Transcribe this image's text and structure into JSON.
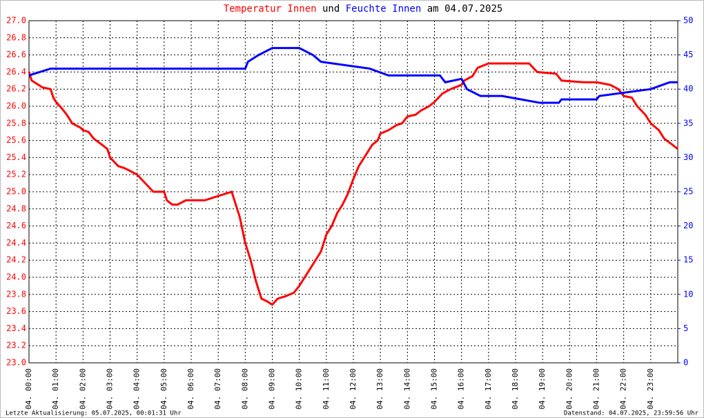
{
  "chart_data": {
    "type": "line",
    "title_connector": "und",
    "title_date": "am 04.07.2025",
    "footer_left": "Letzte Aktualisierung: 05.07.2025, 00:01:31 Uhr",
    "footer_right": "Datenstand: 04.07.2025, 23:59:56 Uhr",
    "grid": true,
    "xlim": [
      0,
      24
    ],
    "xticks": [
      {
        "value": 0,
        "label": "04. 00:00"
      },
      {
        "value": 1,
        "label": "04. 01:00"
      },
      {
        "value": 2,
        "label": "04. 02:00"
      },
      {
        "value": 3,
        "label": "04. 03:00"
      },
      {
        "value": 4,
        "label": "04. 04:00"
      },
      {
        "value": 5,
        "label": "04. 05:00"
      },
      {
        "value": 6,
        "label": "04. 06:00"
      },
      {
        "value": 7,
        "label": "04. 07:00"
      },
      {
        "value": 8,
        "label": "04. 08:00"
      },
      {
        "value": 9,
        "label": "04. 09:00"
      },
      {
        "value": 10,
        "label": "04. 10:00"
      },
      {
        "value": 11,
        "label": "04. 11:00"
      },
      {
        "value": 12,
        "label": "04. 12:00"
      },
      {
        "value": 13,
        "label": "04. 13:00"
      },
      {
        "value": 14,
        "label": "04. 14:00"
      },
      {
        "value": 15,
        "label": "04. 15:00"
      },
      {
        "value": 16,
        "label": "04. 16:00"
      },
      {
        "value": 17,
        "label": "04. 17:00"
      },
      {
        "value": 18,
        "label": "04. 18:00"
      },
      {
        "value": 19,
        "label": "04. 19:00"
      },
      {
        "value": 20,
        "label": "04. 20:00"
      },
      {
        "value": 21,
        "label": "04. 21:00"
      },
      {
        "value": 22,
        "label": "04. 22:00"
      },
      {
        "value": 23,
        "label": "04. 23:00"
      }
    ],
    "ylim": [
      23.0,
      27.0
    ],
    "yticks": [
      {
        "value": 23.0,
        "label": "23.0"
      },
      {
        "value": 23.2,
        "label": "23.2"
      },
      {
        "value": 23.4,
        "label": "23.4"
      },
      {
        "value": 23.6,
        "label": "23.6"
      },
      {
        "value": 23.8,
        "label": "23.8"
      },
      {
        "value": 24.0,
        "label": "24.0"
      },
      {
        "value": 24.2,
        "label": "24.2"
      },
      {
        "value": 24.4,
        "label": "24.4"
      },
      {
        "value": 24.6,
        "label": "24.6"
      },
      {
        "value": 24.8,
        "label": "24.8"
      },
      {
        "value": 25.0,
        "label": "25.0"
      },
      {
        "value": 25.2,
        "label": "25.2"
      },
      {
        "value": 25.4,
        "label": "25.4"
      },
      {
        "value": 25.6,
        "label": "25.6"
      },
      {
        "value": 25.8,
        "label": "25.8"
      },
      {
        "value": 26.0,
        "label": "26.0"
      },
      {
        "value": 26.2,
        "label": "26.2"
      },
      {
        "value": 26.4,
        "label": "26.4"
      },
      {
        "value": 26.6,
        "label": "26.6"
      },
      {
        "value": 26.8,
        "label": "26.8"
      },
      {
        "value": 27.0,
        "label": "27.0"
      }
    ],
    "y2lim": [
      0,
      50
    ],
    "y2ticks": [
      0,
      5,
      10,
      15,
      20,
      25,
      30,
      35,
      40,
      45,
      50
    ],
    "series": [
      {
        "name": "Temperatur Innen",
        "color": "#ff0000",
        "x": [
          0,
          0.1,
          0.2,
          0.5,
          0.8,
          0.9,
          1.0,
          1.2,
          1.4,
          1.6,
          1.9,
          2.0,
          2.2,
          2.4,
          2.7,
          2.9,
          3.0,
          3.3,
          3.5,
          3.7,
          4.0,
          4.3,
          4.6,
          5.0,
          5.1,
          5.3,
          5.5,
          5.8,
          6.5,
          7.0,
          7.5,
          7.6,
          7.8,
          8.0,
          8.2,
          8.4,
          8.6,
          8.8,
          9.0,
          9.2,
          9.5,
          9.8,
          10.0,
          10.3,
          10.5,
          10.8,
          11.0,
          11.2,
          11.4,
          11.6,
          11.8,
          12.0,
          12.2,
          12.4,
          12.7,
          12.9,
          13.0,
          13.3,
          13.6,
          13.8,
          14.0,
          14.3,
          14.5,
          14.8,
          15.0,
          15.3,
          15.6,
          16.0,
          16.1,
          16.4,
          16.6,
          17.0,
          17.5,
          18.0,
          18.5,
          18.8,
          19.5,
          19.7,
          20.5,
          21.0,
          21.5,
          21.8,
          22.0,
          22.3,
          22.5,
          22.8,
          23.0,
          23.3,
          23.5,
          23.8,
          24.0
        ],
        "values": [
          26.4,
          26.3,
          26.28,
          26.22,
          26.2,
          26.1,
          26.05,
          25.98,
          25.9,
          25.8,
          25.75,
          25.72,
          25.7,
          25.62,
          25.55,
          25.5,
          25.4,
          25.3,
          25.28,
          25.25,
          25.2,
          25.1,
          25.0,
          25.0,
          24.9,
          24.85,
          24.85,
          24.9,
          24.9,
          24.95,
          25.0,
          24.9,
          24.7,
          24.4,
          24.2,
          23.95,
          23.75,
          23.72,
          23.68,
          23.75,
          23.78,
          23.82,
          23.9,
          24.05,
          24.15,
          24.3,
          24.5,
          24.6,
          24.75,
          24.85,
          24.98,
          25.15,
          25.3,
          25.4,
          25.55,
          25.6,
          25.68,
          25.72,
          25.78,
          25.8,
          25.88,
          25.9,
          25.95,
          26.0,
          26.05,
          26.15,
          26.2,
          26.25,
          26.3,
          26.35,
          26.45,
          26.5,
          26.5,
          26.5,
          26.5,
          26.4,
          26.38,
          26.3,
          26.28,
          26.28,
          26.25,
          26.2,
          26.12,
          26.1,
          26.0,
          25.9,
          25.8,
          25.72,
          25.62,
          25.55,
          25.5
        ]
      },
      {
        "name": "Feuchte Innen",
        "color": "#0000ff",
        "axis": "y2",
        "x": [
          0,
          0.8,
          8.0,
          8.1,
          8.5,
          9.0,
          10.0,
          10.5,
          10.8,
          12.6,
          13.3,
          15.2,
          15.4,
          16.0,
          16.2,
          16.7,
          17.5,
          18.9,
          19.6,
          19.7,
          21.0,
          21.1,
          23.0,
          23.7,
          24.0
        ],
        "values": [
          42,
          43,
          43,
          44,
          45,
          46,
          46,
          45,
          44,
          43,
          42,
          42,
          41,
          41.5,
          40,
          39,
          39,
          38,
          38,
          38.5,
          38.5,
          39,
          40,
          41,
          41
        ]
      }
    ]
  }
}
